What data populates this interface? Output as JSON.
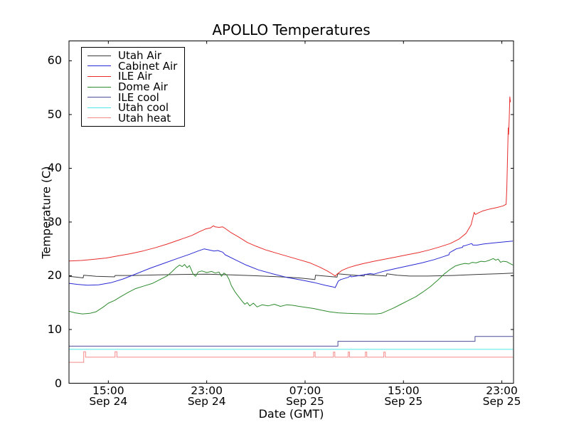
{
  "title": "APOLLO Temperatures",
  "chart_data": {
    "type": "line",
    "title": "APOLLO Temperatures",
    "xlabel": "Date (GMT)",
    "ylabel": "Temperature (C)",
    "x_unit": "hours_since_Sep24_0000_GMT",
    "xlim": [
      11.8,
      47.95
    ],
    "ylim": [
      0,
      63.7
    ],
    "yticks": [
      0,
      10,
      20,
      30,
      40,
      50,
      60
    ],
    "xticks": [
      {
        "h": 15,
        "time": "15:00",
        "date": "Sep 24"
      },
      {
        "h": 23,
        "time": "23:00",
        "date": "Sep 24"
      },
      {
        "h": 31,
        "time": "07:00",
        "date": "Sep 25"
      },
      {
        "h": 39,
        "time": "15:00",
        "date": "Sep 25"
      },
      {
        "h": 47,
        "time": "23:00",
        "date": "Sep 25"
      }
    ],
    "grid": false,
    "legend_position": "upper left",
    "series": [
      {
        "name": "Utah Air",
        "id": "utah-air",
        "color": "#3a3a3a",
        "points": [
          [
            11.8,
            19.9
          ],
          [
            12.4,
            19.75
          ],
          [
            12.95,
            19.6
          ],
          [
            13.0,
            20.1
          ],
          [
            14.0,
            19.9
          ],
          [
            15.5,
            19.8
          ],
          [
            15.55,
            20.05
          ],
          [
            17,
            20.05
          ],
          [
            19,
            20.15
          ],
          [
            21,
            20.25
          ],
          [
            23,
            20.3
          ],
          [
            25,
            20.15
          ],
          [
            27,
            20.0
          ],
          [
            29,
            19.8
          ],
          [
            30.5,
            19.6
          ],
          [
            31.8,
            19.3
          ],
          [
            31.85,
            20.1
          ],
          [
            33.6,
            19.75
          ],
          [
            33.65,
            20.35
          ],
          [
            35.8,
            19.95
          ],
          [
            35.85,
            20.25
          ],
          [
            37.6,
            19.95
          ],
          [
            37.65,
            20.35
          ],
          [
            38.5,
            20.1
          ],
          [
            39.5,
            19.95
          ],
          [
            41,
            19.95
          ],
          [
            43,
            20.05
          ],
          [
            45,
            20.25
          ],
          [
            47,
            20.4
          ],
          [
            47.9,
            20.5
          ]
        ]
      },
      {
        "name": "Cabinet Air",
        "id": "cabinet-air",
        "color": "#2a2ad4",
        "points": [
          [
            11.8,
            18.6
          ],
          [
            12.5,
            18.4
          ],
          [
            13.3,
            18.25
          ],
          [
            14.2,
            18.3
          ],
          [
            15.2,
            18.7
          ],
          [
            16.2,
            19.4
          ],
          [
            17.3,
            20.4
          ],
          [
            18.4,
            21.4
          ],
          [
            19.5,
            22.3
          ],
          [
            20.6,
            23.2
          ],
          [
            21.6,
            24.0
          ],
          [
            22.3,
            24.6
          ],
          [
            22.8,
            25.0
          ],
          [
            23.2,
            24.8
          ],
          [
            23.6,
            24.6
          ],
          [
            23.9,
            24.7
          ],
          [
            24.3,
            24.4
          ],
          [
            24.5,
            23.9
          ],
          [
            25.3,
            23.0
          ],
          [
            26.2,
            22.0
          ],
          [
            27.2,
            21.1
          ],
          [
            28.3,
            20.4
          ],
          [
            29.5,
            19.7
          ],
          [
            30.7,
            19.2
          ],
          [
            31.8,
            18.7
          ],
          [
            32.7,
            18.2
          ],
          [
            33.3,
            17.9
          ],
          [
            33.45,
            17.8
          ],
          [
            33.7,
            19.0
          ],
          [
            33.9,
            19.3
          ],
          [
            34.5,
            19.7
          ],
          [
            34.7,
            20.0
          ],
          [
            34.75,
            19.8
          ],
          [
            35.3,
            20.0
          ],
          [
            36.3,
            20.4
          ],
          [
            36.6,
            20.3
          ],
          [
            37.5,
            20.9
          ],
          [
            38.5,
            21.4
          ],
          [
            39.5,
            21.9
          ],
          [
            40.5,
            22.4
          ],
          [
            41.5,
            23.0
          ],
          [
            42.3,
            23.6
          ],
          [
            42.7,
            23.9
          ],
          [
            42.75,
            24.3
          ],
          [
            43.3,
            25.0
          ],
          [
            43.8,
            25.3
          ],
          [
            43.85,
            25.55
          ],
          [
            44.0,
            25.6
          ],
          [
            44.55,
            26.0
          ],
          [
            44.65,
            25.7
          ],
          [
            45.0,
            25.7
          ],
          [
            45.5,
            25.9
          ],
          [
            46.3,
            26.1
          ],
          [
            47.2,
            26.3
          ],
          [
            47.9,
            26.45
          ]
        ]
      },
      {
        "name": "ILE Air",
        "id": "ile-air",
        "color": "#e82c2c",
        "points": [
          [
            11.8,
            22.75
          ],
          [
            12.8,
            22.85
          ],
          [
            13.8,
            23.05
          ],
          [
            14.8,
            23.3
          ],
          [
            15.8,
            23.7
          ],
          [
            16.8,
            24.1
          ],
          [
            17.8,
            24.6
          ],
          [
            18.8,
            25.2
          ],
          [
            19.8,
            25.9
          ],
          [
            20.8,
            26.7
          ],
          [
            21.8,
            27.5
          ],
          [
            22.4,
            28.2
          ],
          [
            22.9,
            28.7
          ],
          [
            23.3,
            28.9
          ],
          [
            23.55,
            29.3
          ],
          [
            23.7,
            29.1
          ],
          [
            24.0,
            29.0
          ],
          [
            24.3,
            29.1
          ],
          [
            24.5,
            28.8
          ],
          [
            25.0,
            28.0
          ],
          [
            25.6,
            27.2
          ],
          [
            26.3,
            26.2
          ],
          [
            27.0,
            25.5
          ],
          [
            27.8,
            24.8
          ],
          [
            28.7,
            24.2
          ],
          [
            29.6,
            23.6
          ],
          [
            30.5,
            23.0
          ],
          [
            31.4,
            22.4
          ],
          [
            32.2,
            21.6
          ],
          [
            32.8,
            20.9
          ],
          [
            33.3,
            20.2
          ],
          [
            33.45,
            19.95
          ],
          [
            33.6,
            20.3
          ],
          [
            34.0,
            21.0
          ],
          [
            34.5,
            21.5
          ],
          [
            35.1,
            21.9
          ],
          [
            35.8,
            22.3
          ],
          [
            36.6,
            22.7
          ],
          [
            37.5,
            23.1
          ],
          [
            38.4,
            23.5
          ],
          [
            39.3,
            23.9
          ],
          [
            40.2,
            24.3
          ],
          [
            41.1,
            24.8
          ],
          [
            42.0,
            25.4
          ],
          [
            42.8,
            26.0
          ],
          [
            43.5,
            26.8
          ],
          [
            44.1,
            27.9
          ],
          [
            44.5,
            29.5
          ],
          [
            44.75,
            31.8
          ],
          [
            44.85,
            31.4
          ],
          [
            45.1,
            31.7
          ],
          [
            45.5,
            32.1
          ],
          [
            46.0,
            32.4
          ],
          [
            46.6,
            32.7
          ],
          [
            47.1,
            33.0
          ],
          [
            47.35,
            33.3
          ],
          [
            47.4,
            36.0
          ],
          [
            47.45,
            41.0
          ],
          [
            47.5,
            45.5
          ],
          [
            47.52,
            47.5
          ],
          [
            47.55,
            46.3
          ],
          [
            47.6,
            49.0
          ],
          [
            47.65,
            53.3
          ],
          [
            47.7,
            52.3
          ]
        ]
      },
      {
        "name": "Dome Air",
        "id": "dome-air",
        "color": "#2e8b2e",
        "points": [
          [
            11.8,
            13.4
          ],
          [
            12.3,
            13.1
          ],
          [
            12.9,
            12.9
          ],
          [
            13.5,
            13.0
          ],
          [
            14.0,
            13.3
          ],
          [
            14.6,
            14.2
          ],
          [
            15.0,
            14.9
          ],
          [
            15.5,
            15.4
          ],
          [
            16.0,
            16.1
          ],
          [
            16.6,
            16.9
          ],
          [
            17.2,
            17.6
          ],
          [
            17.9,
            18.1
          ],
          [
            18.6,
            18.6
          ],
          [
            19.2,
            19.3
          ],
          [
            19.8,
            20.0
          ],
          [
            20.2,
            20.8
          ],
          [
            20.5,
            21.5
          ],
          [
            20.8,
            22.0
          ],
          [
            21.0,
            21.7
          ],
          [
            21.2,
            22.1
          ],
          [
            21.4,
            21.5
          ],
          [
            21.6,
            21.9
          ],
          [
            21.9,
            20.3
          ],
          [
            22.1,
            19.9
          ],
          [
            22.3,
            20.7
          ],
          [
            22.6,
            20.9
          ],
          [
            23.0,
            20.6
          ],
          [
            23.4,
            20.8
          ],
          [
            23.7,
            20.5
          ],
          [
            24.0,
            20.7
          ],
          [
            24.2,
            19.9
          ],
          [
            24.4,
            20.5
          ],
          [
            24.6,
            20.2
          ],
          [
            24.8,
            19.4
          ],
          [
            25.0,
            18.2
          ],
          [
            25.3,
            17.0
          ],
          [
            25.6,
            16.1
          ],
          [
            25.9,
            15.2
          ],
          [
            26.1,
            14.7
          ],
          [
            26.3,
            15.0
          ],
          [
            26.5,
            14.4
          ],
          [
            26.8,
            14.9
          ],
          [
            27.1,
            14.2
          ],
          [
            27.5,
            14.6
          ],
          [
            28.0,
            14.4
          ],
          [
            28.5,
            14.7
          ],
          [
            29.0,
            14.3
          ],
          [
            29.5,
            14.6
          ],
          [
            30.0,
            14.5
          ],
          [
            30.5,
            14.3
          ],
          [
            31.1,
            14.1
          ],
          [
            31.7,
            13.9
          ],
          [
            32.3,
            13.6
          ],
          [
            33.0,
            13.3
          ],
          [
            33.7,
            13.1
          ],
          [
            34.4,
            13.0
          ],
          [
            35.2,
            12.95
          ],
          [
            36.0,
            12.9
          ],
          [
            36.8,
            12.9
          ],
          [
            37.2,
            13.0
          ],
          [
            37.6,
            13.4
          ],
          [
            38.2,
            14.0
          ],
          [
            38.8,
            14.7
          ],
          [
            39.4,
            15.4
          ],
          [
            40.0,
            16.1
          ],
          [
            40.6,
            17.0
          ],
          [
            41.2,
            18.0
          ],
          [
            41.8,
            19.2
          ],
          [
            42.3,
            20.3
          ],
          [
            42.8,
            21.2
          ],
          [
            43.2,
            21.8
          ],
          [
            43.6,
            22.1
          ],
          [
            44.0,
            22.3
          ],
          [
            44.3,
            22.2
          ],
          [
            44.6,
            22.5
          ],
          [
            44.9,
            22.4
          ],
          [
            45.3,
            22.7
          ],
          [
            45.6,
            22.6
          ],
          [
            46.0,
            22.9
          ],
          [
            46.3,
            23.2
          ],
          [
            46.5,
            22.9
          ],
          [
            46.7,
            23.1
          ],
          [
            46.9,
            22.5
          ],
          [
            47.1,
            22.7
          ],
          [
            47.4,
            22.6
          ],
          [
            47.9,
            22.0
          ]
        ]
      },
      {
        "name": "ILE cool",
        "id": "ile-cool",
        "color": "#4d4d99",
        "points": [
          [
            11.8,
            6.9
          ],
          [
            33.67,
            6.9
          ],
          [
            33.67,
            7.8
          ],
          [
            44.82,
            7.8
          ],
          [
            44.82,
            8.7
          ],
          [
            47.9,
            8.7
          ]
        ]
      },
      {
        "name": "Utah cool",
        "id": "utah-cool",
        "color": "#4fe8e8",
        "points": [
          [
            11.8,
            6.3
          ],
          [
            47.9,
            6.3
          ]
        ]
      },
      {
        "name": "Utah heat",
        "id": "utah-heat",
        "color": "#f58a8a",
        "points": [
          [
            11.8,
            3.9
          ],
          [
            13.0,
            3.9
          ],
          [
            13.0,
            5.85
          ],
          [
            13.15,
            5.85
          ],
          [
            13.15,
            4.85
          ],
          [
            15.55,
            4.85
          ],
          [
            15.55,
            5.85
          ],
          [
            15.7,
            5.85
          ],
          [
            15.7,
            4.85
          ],
          [
            31.7,
            4.85
          ],
          [
            31.7,
            5.8
          ],
          [
            31.82,
            5.8
          ],
          [
            31.82,
            4.85
          ],
          [
            33.3,
            4.85
          ],
          [
            33.3,
            5.8
          ],
          [
            33.42,
            5.8
          ],
          [
            33.42,
            4.85
          ],
          [
            34.5,
            4.85
          ],
          [
            34.5,
            5.8
          ],
          [
            34.62,
            5.8
          ],
          [
            34.62,
            4.85
          ],
          [
            35.9,
            4.85
          ],
          [
            35.9,
            5.8
          ],
          [
            36.02,
            5.8
          ],
          [
            36.02,
            4.85
          ],
          [
            37.4,
            4.85
          ],
          [
            37.4,
            5.8
          ],
          [
            37.52,
            5.8
          ],
          [
            37.52,
            4.85
          ],
          [
            47.9,
            4.85
          ]
        ]
      }
    ]
  }
}
